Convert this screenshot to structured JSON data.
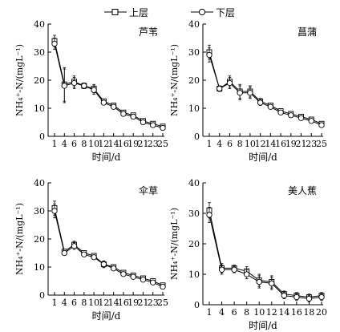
{
  "legend": {
    "items": [
      {
        "label": "上层",
        "marker": "hollow-square"
      },
      {
        "label": "下层",
        "marker": "hollow-circle"
      }
    ]
  },
  "chart_data": [
    {
      "type": "line",
      "title": "芦苇",
      "xlabel": "时间/d",
      "ylabel": "NH₄⁺-N/(mgL⁻¹)",
      "ylim": [
        0,
        40
      ],
      "yticks": [
        0,
        10,
        20,
        30,
        40
      ],
      "categories": [
        "1",
        "4",
        "6",
        "8",
        "10",
        "12",
        "14",
        "16",
        "19",
        "21",
        "23",
        "25"
      ],
      "series": [
        {
          "name": "上层",
          "values": [
            34.0,
            18.5,
            19.5,
            18.0,
            17.0,
            12.5,
            11.0,
            8.5,
            7.5,
            5.5,
            4.5,
            3.5
          ],
          "errors": [
            2.0,
            6.0,
            2.0,
            1.0,
            1.5,
            0.8,
            0.8,
            0.8,
            0.8,
            0.6,
            0.6,
            0.5
          ]
        },
        {
          "name": "下层",
          "values": [
            33.0,
            18.0,
            19.0,
            18.0,
            16.5,
            12.0,
            10.5,
            8.0,
            7.0,
            5.0,
            4.0,
            3.0
          ],
          "errors": [
            2.0,
            6.0,
            2.0,
            1.0,
            1.5,
            0.8,
            0.8,
            0.8,
            0.8,
            0.6,
            0.6,
            0.5
          ]
        }
      ]
    },
    {
      "type": "line",
      "title": "菖蒲",
      "xlabel": "时间/d",
      "ylabel": "NH₄⁺-N/(mgL⁻¹)",
      "ylim": [
        0,
        40
      ],
      "yticks": [
        0,
        10,
        20,
        30,
        40
      ],
      "categories": [
        "1",
        "4",
        "6",
        "8",
        "10",
        "12",
        "14",
        "16",
        "19",
        "21",
        "23",
        "25"
      ],
      "series": [
        {
          "name": "上层",
          "values": [
            30.0,
            17.0,
            19.5,
            16.0,
            16.0,
            12.5,
            11.0,
            9.0,
            8.0,
            7.0,
            6.0,
            4.5
          ],
          "errors": [
            2.5,
            1.0,
            2.0,
            2.5,
            2.0,
            1.0,
            0.8,
            0.8,
            0.7,
            0.7,
            0.7,
            0.6
          ]
        },
        {
          "name": "下层",
          "values": [
            29.0,
            17.0,
            19.0,
            15.5,
            15.5,
            12.0,
            10.5,
            8.5,
            7.5,
            6.5,
            5.5,
            4.0
          ],
          "errors": [
            2.5,
            1.0,
            2.0,
            2.5,
            2.0,
            1.0,
            0.8,
            0.8,
            0.7,
            0.7,
            0.7,
            0.6
          ]
        }
      ]
    },
    {
      "type": "line",
      "title": "伞草",
      "xlabel": "时间/d",
      "ylabel": "NH₄⁺-N/(mgL⁻¹)",
      "ylim": [
        0,
        40
      ],
      "yticks": [
        0,
        10,
        20,
        30,
        40
      ],
      "categories": [
        "1",
        "4",
        "6",
        "8",
        "10",
        "12",
        "14",
        "16",
        "19",
        "21",
        "23",
        "25"
      ],
      "series": [
        {
          "name": "上层",
          "values": [
            31.0,
            15.5,
            18.0,
            15.0,
            14.0,
            11.0,
            10.0,
            8.0,
            7.0,
            6.0,
            5.0,
            3.5
          ],
          "errors": [
            2.5,
            0.8,
            1.2,
            0.8,
            0.8,
            1.2,
            0.8,
            0.6,
            0.6,
            0.6,
            0.6,
            0.5
          ]
        },
        {
          "name": "下层",
          "values": [
            30.0,
            15.0,
            17.5,
            14.5,
            13.5,
            11.0,
            9.5,
            7.5,
            6.5,
            5.5,
            4.5,
            3.0
          ],
          "errors": [
            2.5,
            0.8,
            1.2,
            0.8,
            0.8,
            1.2,
            0.8,
            0.6,
            0.6,
            0.6,
            0.6,
            0.5
          ]
        }
      ]
    },
    {
      "type": "line",
      "title": "美人蕉",
      "xlabel": "时间/d",
      "ylabel": "NH₄⁺-N/(mgL⁻¹)",
      "ylim": [
        0,
        40
      ],
      "yticks": [
        0,
        10,
        20,
        30,
        40
      ],
      "categories": [
        "1",
        "4",
        "6",
        "8",
        "10",
        "12",
        "14",
        "16",
        "18",
        "20"
      ],
      "series": [
        {
          "name": "上层",
          "values": [
            31.0,
            12.0,
            12.0,
            11.0,
            8.0,
            7.5,
            3.5,
            3.0,
            2.5,
            3.0
          ],
          "errors": [
            2.5,
            1.5,
            1.0,
            1.5,
            2.0,
            2.0,
            1.0,
            1.0,
            1.0,
            1.0
          ]
        },
        {
          "name": "下层",
          "values": [
            29.5,
            11.5,
            11.5,
            10.0,
            7.5,
            7.0,
            3.0,
            2.5,
            2.0,
            2.5
          ],
          "errors": [
            2.5,
            1.5,
            1.0,
            1.5,
            2.0,
            2.0,
            1.0,
            1.0,
            1.0,
            1.0
          ]
        }
      ]
    }
  ]
}
